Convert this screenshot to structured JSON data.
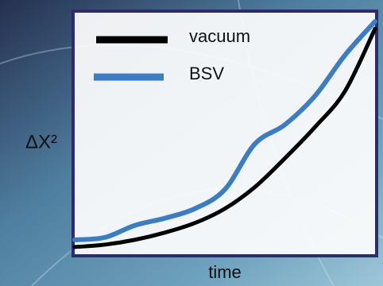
{
  "chart_data": {
    "type": "line",
    "x_label": "time",
    "y_label": "ΔX²",
    "x": [
      0,
      1,
      2,
      3,
      4,
      5,
      6,
      7,
      8,
      9,
      10
    ],
    "xlim": [
      0,
      10
    ],
    "ylim": [
      0,
      10
    ],
    "series": [
      {
        "name": "vacuum",
        "color": "#000000",
        "values": [
          0.3,
          0.4,
          0.6,
          0.9,
          1.3,
          1.9,
          2.8,
          4.0,
          5.3,
          6.8,
          9.4
        ]
      },
      {
        "name": "BSV",
        "color": "#3a7dc4",
        "values": [
          0.6,
          0.7,
          1.2,
          1.5,
          1.9,
          2.7,
          4.6,
          5.4,
          6.6,
          8.3,
          9.7
        ]
      }
    ]
  }
}
